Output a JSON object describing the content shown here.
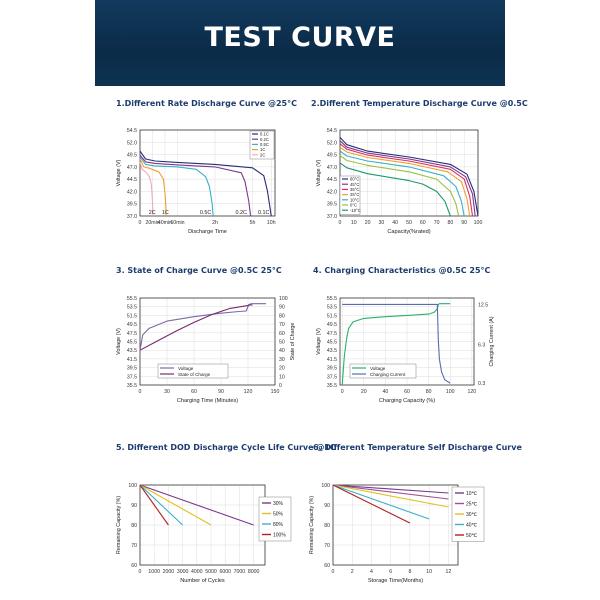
{
  "header": {
    "title": "TEST CURVE"
  },
  "colors": {
    "header_bg": "#0b2b48",
    "title_text": "#1d3c6e",
    "axis": "#333333",
    "grid": "#dddddd"
  },
  "chart_data": [
    {
      "id": "p1",
      "type": "line",
      "title": "1.Different Rate Discharge Curve @25°C",
      "xlabel": "Discharge Time",
      "ylabel": "Voltage (V)",
      "ylim": [
        37.0,
        54.5
      ],
      "yticks": [
        "37.0",
        "39.5",
        "42.0",
        "44.5",
        "47.0",
        "49.5",
        "52.0",
        "54.5"
      ],
      "xticks": [
        {
          "label": "0",
          "pos": 0
        },
        {
          "label": "20min",
          "pos": 6.7
        },
        {
          "label": "40min",
          "pos": 13.3
        },
        {
          "label": "60min",
          "pos": 20
        },
        {
          "label": "2h",
          "pos": 40
        },
        {
          "label": "5h",
          "pos": 60
        },
        {
          "label": "10h",
          "pos": 70
        }
      ],
      "xlim": [
        0,
        72
      ],
      "legend": [
        "0.1C",
        "0.2C",
        "0.5C",
        "1C",
        "2C"
      ],
      "curve_labels": [
        {
          "text": "2C",
          "x": 6.5
        },
        {
          "text": "1C",
          "x": 13.5
        },
        {
          "text": "0.5C",
          "x": 35
        },
        {
          "text": "0.2C",
          "x": 54
        },
        {
          "text": "0.1C",
          "x": 66
        }
      ],
      "series": [
        {
          "name": "0.1C",
          "color": "#2a2a7a",
          "x": [
            0,
            3,
            8,
            20,
            40,
            60,
            66,
            68,
            70
          ],
          "y": [
            50.2,
            48.6,
            48.2,
            47.9,
            47.5,
            46.8,
            45.2,
            42,
            37
          ]
        },
        {
          "name": "0.2C",
          "color": "#7a3a8a",
          "x": [
            0,
            3,
            8,
            20,
            40,
            54,
            56,
            58,
            59
          ],
          "y": [
            49.4,
            48.0,
            47.7,
            47.4,
            47.0,
            45.8,
            44.0,
            40,
            37
          ]
        },
        {
          "name": "0.5C",
          "color": "#3aafc9",
          "x": [
            0,
            3,
            8,
            20,
            30,
            35,
            37,
            38.5,
            39
          ],
          "y": [
            49.0,
            47.5,
            47.2,
            47.0,
            46.5,
            45.0,
            43.0,
            39.5,
            37
          ]
        },
        {
          "name": "1C",
          "color": "#f0a030",
          "x": [
            0,
            2,
            5,
            10,
            12.5,
            13.5,
            14
          ],
          "y": [
            48.6,
            47.0,
            46.7,
            46.0,
            44.5,
            41,
            37
          ]
        },
        {
          "name": "2C",
          "color": "#f4a8b8",
          "x": [
            0,
            1,
            3,
            5,
            6,
            6.5,
            7
          ],
          "y": [
            48.0,
            46.5,
            46.0,
            45.0,
            43.5,
            41,
            37
          ]
        }
      ]
    },
    {
      "id": "p2",
      "type": "line",
      "title": "2.Different Temperature Discharge Curve @0.5C",
      "xlabel": "Capacity(%rated)",
      "ylabel": "Voltage (V)",
      "ylim": [
        37.0,
        54.5
      ],
      "yticks": [
        "37.0",
        "39.5",
        "42.0",
        "44.5",
        "47.0",
        "49.5",
        "52.0",
        "54.5"
      ],
      "xlim": [
        0,
        100
      ],
      "xticks": [
        {
          "label": "0",
          "pos": 0
        },
        {
          "label": "10",
          "pos": 10
        },
        {
          "label": "20",
          "pos": 20
        },
        {
          "label": "30",
          "pos": 30
        },
        {
          "label": "40",
          "pos": 40
        },
        {
          "label": "50",
          "pos": 50
        },
        {
          "label": "60",
          "pos": 60
        },
        {
          "label": "70",
          "pos": 70
        },
        {
          "label": "80",
          "pos": 80
        },
        {
          "label": "90",
          "pos": 90
        },
        {
          "label": "100",
          "pos": 100
        }
      ],
      "legend": [
        "60°C",
        "45°C",
        "35°C",
        "25°C",
        "10°C",
        "0°C",
        "-10°C"
      ],
      "series": [
        {
          "name": "60°C",
          "color": "#2a2a7a",
          "x": [
            0,
            5,
            20,
            50,
            80,
            92,
            97,
            100
          ],
          "y": [
            53.0,
            51.5,
            50.2,
            49.0,
            47.5,
            45.5,
            42,
            37
          ]
        },
        {
          "name": "45°C",
          "color": "#7a3a8a",
          "x": [
            0,
            5,
            20,
            50,
            80,
            91,
            96,
            98
          ],
          "y": [
            52.3,
            51.0,
            49.8,
            48.6,
            47.0,
            45.0,
            41.5,
            37
          ]
        },
        {
          "name": "35°C",
          "color": "#e03060",
          "x": [
            0,
            5,
            20,
            50,
            80,
            90,
            94,
            96
          ],
          "y": [
            51.7,
            50.6,
            49.4,
            48.2,
            46.5,
            44.5,
            41,
            37
          ]
        },
        {
          "name": "25°C",
          "color": "#f0a030",
          "x": [
            0,
            5,
            20,
            50,
            78,
            88,
            92,
            94
          ],
          "y": [
            51.0,
            50.0,
            48.9,
            47.7,
            46.0,
            44.0,
            40.5,
            37
          ]
        },
        {
          "name": "10°C",
          "color": "#3aafc9",
          "x": [
            0,
            5,
            20,
            50,
            75,
            84,
            88,
            90
          ],
          "y": [
            50.2,
            49.2,
            48.2,
            47.0,
            45.2,
            43.0,
            40,
            37
          ]
        },
        {
          "name": "0°C",
          "color": "#9ac040",
          "x": [
            0,
            5,
            20,
            50,
            70,
            80,
            84,
            86
          ],
          "y": [
            49.3,
            48.3,
            47.3,
            46.0,
            44.5,
            42.0,
            39.5,
            37
          ]
        },
        {
          "name": "-10°C",
          "color": "#1a9a6a",
          "x": [
            0,
            5,
            20,
            50,
            60,
            70,
            76,
            80
          ],
          "y": [
            47.8,
            46.8,
            45.6,
            44.2,
            43.5,
            42.0,
            40,
            37
          ]
        }
      ]
    },
    {
      "id": "p3",
      "type": "line",
      "title": "3. State of Charge Curve @0.5C 25°C",
      "xlabel": "Charging Time (Minutes)",
      "ylabel": "Voltage (V)",
      "y2label": "State of Charge",
      "ylim": [
        35.5,
        55.5
      ],
      "yticks": [
        "35.5",
        "37.5",
        "39.5",
        "41.5",
        "43.5",
        "45.5",
        "47.5",
        "49.5",
        "51.5",
        "53.5",
        "55.5"
      ],
      "y2lim": [
        0,
        100
      ],
      "y2ticks": [
        "0",
        "10",
        "20",
        "30",
        "40",
        "50",
        "60",
        "70",
        "80",
        "90",
        "100"
      ],
      "xlim": [
        0,
        150
      ],
      "xticks": [
        {
          "label": "0",
          "pos": 0
        },
        {
          "label": "30",
          "pos": 30
        },
        {
          "label": "60",
          "pos": 60
        },
        {
          "label": "90",
          "pos": 90
        },
        {
          "label": "120",
          "pos": 120
        },
        {
          "label": "150",
          "pos": 150
        }
      ],
      "legend": [
        "Voltage",
        "State of Charge"
      ],
      "series": [
        {
          "name": "Voltage",
          "axis": "y",
          "color": "#7a6aaa",
          "x": [
            0,
            3,
            10,
            30,
            60,
            90,
            110,
            118,
            121,
            124,
            140
          ],
          "y": [
            43.5,
            47.0,
            48.5,
            50.2,
            51.2,
            52.0,
            52.4,
            52.5,
            54.0,
            54.2,
            54.2
          ]
        },
        {
          "name": "State of Charge",
          "axis": "y2",
          "color": "#7a2a6a",
          "x": [
            0,
            20,
            40,
            60,
            80,
            100,
            118,
            122,
            125
          ],
          "y": [
            40,
            51,
            62,
            72,
            81,
            88,
            91,
            92,
            92
          ]
        }
      ]
    },
    {
      "id": "p4",
      "type": "line",
      "title": "4. Charging Characteristics @0.5C 25°C",
      "xlabel": "Charging Capacity (%)",
      "ylabel": "Voltage (V)",
      "y2label": "Charging Current (A)",
      "ylim": [
        35.5,
        55.5
      ],
      "yticks": [
        "35.5",
        "37.5",
        "39.5",
        "41.5",
        "43.5",
        "45.5",
        "47.5",
        "49.5",
        "51.5",
        "53.5",
        "55.5"
      ],
      "y2lim": [
        0,
        13.5
      ],
      "y2ticks": [
        {
          "label": "12.5",
          "val": 12.5
        },
        {
          "label": "6.3",
          "val": 6.3
        },
        {
          "label": "0.3",
          "val": 0.3
        }
      ],
      "xlim": [
        -2,
        122
      ],
      "xticks": [
        {
          "label": "0",
          "pos": 0
        },
        {
          "label": "20",
          "pos": 20
        },
        {
          "label": "40",
          "pos": 40
        },
        {
          "label": "60",
          "pos": 60
        },
        {
          "label": "80",
          "pos": 80
        },
        {
          "label": "100",
          "pos": 100
        },
        {
          "label": "120",
          "pos": 120
        }
      ],
      "legend": [
        "Voltage",
        "Charging Current"
      ],
      "series": [
        {
          "name": "Voltage",
          "axis": "y",
          "color": "#2ab06a",
          "x": [
            0,
            2,
            4,
            6,
            10,
            20,
            40,
            60,
            80,
            85,
            88,
            89,
            90,
            100
          ],
          "y": [
            35.5,
            42,
            46,
            48.5,
            50.0,
            50.8,
            51.2,
            51.5,
            51.8,
            52.2,
            53.0,
            54.0,
            54.2,
            54.2
          ]
        },
        {
          "name": "Charging Current",
          "axis": "y2",
          "color": "#5a6ab0",
          "x": [
            0,
            80,
            88,
            89,
            90,
            92,
            95,
            100
          ],
          "y": [
            12.5,
            12.5,
            12.5,
            7.0,
            4.0,
            2.0,
            0.8,
            0.3
          ]
        }
      ]
    },
    {
      "id": "p5",
      "type": "line",
      "title": "5. Different DOD Discharge Cycle Life Curve @1C",
      "xlabel": "Number of Cycles",
      "ylabel": "Remaining Capacity (%)",
      "ylim": [
        60,
        100
      ],
      "yticks": [
        "60",
        "70",
        "80",
        "90",
        "100"
      ],
      "xlim": [
        0,
        8800
      ],
      "xticks": [
        {
          "label": "0",
          "pos": 0
        },
        {
          "label": "1000",
          "pos": 1000
        },
        {
          "label": "2000",
          "pos": 2000
        },
        {
          "label": "3000",
          "pos": 3000
        },
        {
          "label": "4000",
          "pos": 4000
        },
        {
          "label": "5000",
          "pos": 5000
        },
        {
          "label": "6000",
          "pos": 6000
        },
        {
          "label": "7000",
          "pos": 7000
        },
        {
          "label": "8000",
          "pos": 8000
        }
      ],
      "legend": [
        "30%",
        "50%",
        "80%",
        "100%"
      ],
      "series": [
        {
          "name": "30%",
          "color": "#7a3a8a",
          "x": [
            0,
            8000
          ],
          "y": [
            100,
            80
          ]
        },
        {
          "name": "50%",
          "color": "#e0c020",
          "x": [
            0,
            5000
          ],
          "y": [
            100,
            80
          ]
        },
        {
          "name": "80%",
          "color": "#3aafc9",
          "x": [
            0,
            3000
          ],
          "y": [
            100,
            80
          ]
        },
        {
          "name": "100%",
          "color": "#b02020",
          "x": [
            0,
            2000
          ],
          "y": [
            100,
            80
          ]
        }
      ]
    },
    {
      "id": "p6",
      "type": "line",
      "title": "6. Different Temperature Self Discharge Curve",
      "xlabel": "Storage Time(Months)",
      "ylabel": "Remaining Capacity (%)",
      "ylim": [
        60,
        100
      ],
      "yticks": [
        "60",
        "70",
        "80",
        "90",
        "100"
      ],
      "xlim": [
        0,
        13
      ],
      "xticks": [
        {
          "label": "0",
          "pos": 0
        },
        {
          "label": "2",
          "pos": 2
        },
        {
          "label": "4",
          "pos": 4
        },
        {
          "label": "6",
          "pos": 6
        },
        {
          "label": "8",
          "pos": 8
        },
        {
          "label": "10",
          "pos": 10
        },
        {
          "label": "12",
          "pos": 12
        }
      ],
      "legend": [
        "10℃",
        "25℃",
        "30℃",
        "40℃",
        "50℃"
      ],
      "series": [
        {
          "name": "10℃",
          "color": "#7a3a8a",
          "x": [
            0,
            12
          ],
          "y": [
            100,
            96
          ]
        },
        {
          "name": "25℃",
          "color": "#a05090",
          "x": [
            0,
            12
          ],
          "y": [
            100,
            93
          ]
        },
        {
          "name": "30℃",
          "color": "#e0c020",
          "x": [
            0,
            12
          ],
          "y": [
            100,
            89
          ]
        },
        {
          "name": "40℃",
          "color": "#3aafc9",
          "x": [
            0,
            10
          ],
          "y": [
            100,
            83
          ]
        },
        {
          "name": "50℃",
          "color": "#b02020",
          "x": [
            0,
            8
          ],
          "y": [
            100,
            81
          ]
        }
      ]
    }
  ]
}
